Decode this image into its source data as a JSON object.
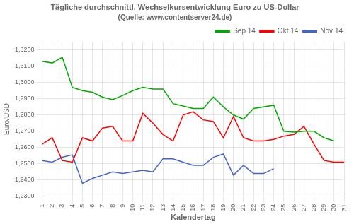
{
  "chart_data": {
    "type": "line",
    "title": "Tägliche durchschnittl. Wechselkursentwicklung Euro zu US-Dollar",
    "subtitle": "(Quelle: www.contentserver24.de)",
    "x_label": "Kalendertag",
    "y_label": "Euro/USD",
    "x": [
      1,
      2,
      3,
      4,
      5,
      6,
      7,
      8,
      9,
      10,
      11,
      12,
      13,
      14,
      15,
      16,
      17,
      18,
      19,
      20,
      21,
      22,
      23,
      24,
      25,
      26,
      27,
      28,
      29,
      30,
      31
    ],
    "series": [
      {
        "name": "Sep 14",
        "color": "#00AA00",
        "values": [
          1.313,
          1.312,
          1.3155,
          1.297,
          1.295,
          1.294,
          1.291,
          1.2895,
          1.292,
          1.295,
          1.297,
          1.296,
          1.296,
          1.287,
          1.2855,
          1.284,
          1.284,
          1.291,
          1.285,
          1.28,
          1.2775,
          1.284,
          1.285,
          1.286,
          1.27,
          1.2695,
          1.27,
          1.27,
          1.266,
          1.264,
          null
        ]
      },
      {
        "name": "Okt 14",
        "color": "#FF0000",
        "values": [
          1.262,
          1.266,
          1.252,
          1.251,
          1.266,
          1.264,
          1.272,
          1.273,
          1.264,
          1.264,
          1.281,
          1.275,
          1.268,
          1.264,
          1.28,
          1.282,
          1.277,
          1.276,
          1.266,
          1.279,
          1.266,
          1.264,
          1.264,
          1.265,
          1.267,
          1.268,
          1.273,
          1.262,
          1.252,
          1.251,
          1.251
        ]
      },
      {
        "name": "Nov 14",
        "color": "#4466CC",
        "values": [
          1.252,
          1.251,
          1.254,
          1.2555,
          1.238,
          1.241,
          1.243,
          1.245,
          1.244,
          1.245,
          1.246,
          1.245,
          1.253,
          1.253,
          1.251,
          1.249,
          1.249,
          1.254,
          1.256,
          1.243,
          1.249,
          1.244,
          1.244,
          1.247,
          null,
          null,
          null,
          null,
          null,
          null,
          null
        ]
      }
    ],
    "xlim": [
      1,
      31
    ],
    "xticks": [
      1,
      2,
      3,
      4,
      5,
      6,
      7,
      8,
      9,
      10,
      11,
      12,
      13,
      14,
      15,
      16,
      17,
      18,
      19,
      20,
      21,
      22,
      23,
      24,
      25,
      26,
      27,
      28,
      29,
      30,
      31
    ],
    "ylim": [
      1.23,
      1.325
    ],
    "yticks": [
      {
        "value": 1.23,
        "label": "1,2300"
      },
      {
        "value": 1.24,
        "label": "1,2400"
      },
      {
        "value": 1.25,
        "label": "1,2500"
      },
      {
        "value": 1.26,
        "label": "1,2600"
      },
      {
        "value": 1.27,
        "label": "1,2700"
      },
      {
        "value": 1.28,
        "label": "1,2800"
      },
      {
        "value": 1.29,
        "label": "1,2900"
      },
      {
        "value": 1.3,
        "label": "1,3000"
      },
      {
        "value": 1.31,
        "label": "1,3100"
      },
      {
        "value": 1.32,
        "label": "1,3200"
      }
    ],
    "grid": true,
    "legend": "upper right"
  }
}
